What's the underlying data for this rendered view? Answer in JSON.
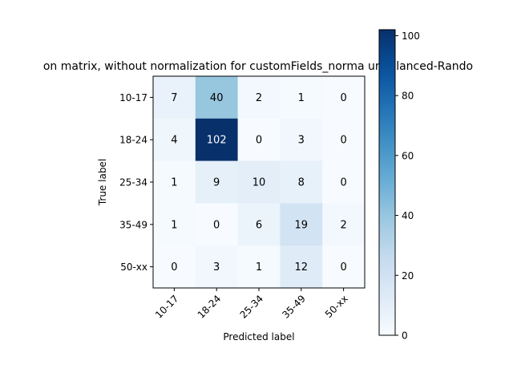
{
  "chart_data": {
    "type": "heatmap",
    "title": "on matrix, without normalization for customFields_norma  unbalanced-Rando",
    "xlabel": "Predicted label",
    "ylabel": "True label",
    "x_categories": [
      "10-17",
      "18-24",
      "25-34",
      "35-49",
      "50-xx"
    ],
    "y_categories": [
      "10-17",
      "18-24",
      "25-34",
      "35-49",
      "50-xx"
    ],
    "values": [
      [
        7,
        40,
        2,
        1,
        0
      ],
      [
        4,
        102,
        0,
        3,
        0
      ],
      [
        1,
        9,
        10,
        8,
        0
      ],
      [
        1,
        0,
        6,
        19,
        2
      ],
      [
        0,
        3,
        1,
        12,
        0
      ]
    ],
    "colormap": "Blues",
    "vmin": 0,
    "vmax": 102,
    "colorbar_ticks": [
      0,
      20,
      40,
      60,
      80,
      100
    ],
    "grid": false
  }
}
